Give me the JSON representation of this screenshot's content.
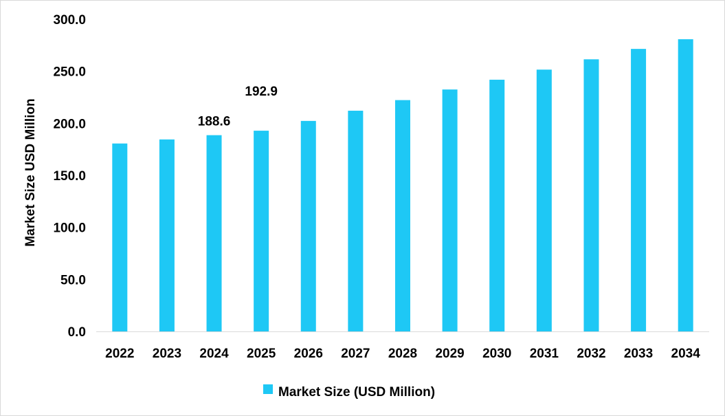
{
  "chart_data": {
    "type": "bar",
    "title": "",
    "xlabel": "",
    "ylabel": "Market Size USD Million",
    "ylim": [
      0,
      300
    ],
    "yticks": [
      0,
      50,
      100,
      150,
      200,
      250,
      300
    ],
    "ytick_labels": [
      "0.0",
      "50.0",
      "100.0",
      "150.0",
      "200.0",
      "250.0",
      "300.0"
    ],
    "categories": [
      "2022",
      "2023",
      "2024",
      "2025",
      "2026",
      "2027",
      "2028",
      "2029",
      "2030",
      "2031",
      "2032",
      "2033",
      "2034"
    ],
    "series": [
      {
        "name": "Market Size (USD Million)",
        "color": "#1ec8f5",
        "values": [
          180.6,
          184.5,
          188.6,
          192.9,
          202.3,
          212.1,
          222.3,
          232.5,
          241.9,
          251.6,
          261.5,
          271.5,
          280.8
        ]
      }
    ],
    "data_labels": [
      {
        "category": "2024",
        "text": "188.6"
      },
      {
        "category": "2025",
        "text": "192.9"
      }
    ],
    "legend": {
      "position": "bottom",
      "label": "Market Size (USD Million)"
    },
    "grid": false
  }
}
